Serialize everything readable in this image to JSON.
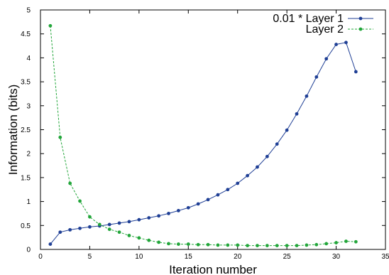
{
  "chart_data": {
    "type": "line",
    "title": "",
    "xlabel": "Iteration number",
    "ylabel": "Information (bits)",
    "xlim": [
      0,
      35
    ],
    "ylim": [
      0,
      5
    ],
    "xticks": [
      "0",
      "5",
      "10",
      "15",
      "20",
      "25",
      "30",
      "35"
    ],
    "yticks": [
      "0",
      "0.5",
      "1",
      "1.5",
      "2",
      "2.5",
      "3",
      "3.5",
      "4",
      "4.5",
      "5"
    ],
    "grid": false,
    "legend_position": "top-right",
    "series": [
      {
        "name": "0.01 * Layer 1",
        "color": "#1f3f95",
        "line_style": "solid",
        "marker": "circle",
        "x": [
          1,
          2,
          3,
          4,
          5,
          6,
          7,
          8,
          9,
          10,
          11,
          12,
          13,
          14,
          15,
          16,
          17,
          18,
          19,
          20,
          21,
          22,
          23,
          24,
          25,
          26,
          27,
          28,
          29,
          30,
          31,
          32
        ],
        "y": [
          0.11,
          0.36,
          0.41,
          0.44,
          0.47,
          0.49,
          0.52,
          0.55,
          0.58,
          0.62,
          0.66,
          0.7,
          0.75,
          0.81,
          0.87,
          0.95,
          1.04,
          1.14,
          1.25,
          1.38,
          1.54,
          1.72,
          1.94,
          2.2,
          2.49,
          2.83,
          3.2,
          3.6,
          3.98,
          4.28,
          4.32,
          3.71
        ]
      },
      {
        "name": "Layer 2",
        "color": "#22a63a",
        "line_style": "dashed",
        "marker": "circle",
        "x": [
          1,
          2,
          3,
          4,
          5,
          6,
          7,
          8,
          9,
          10,
          11,
          12,
          13,
          14,
          15,
          16,
          17,
          18,
          19,
          20,
          21,
          22,
          23,
          24,
          25,
          26,
          27,
          28,
          29,
          30,
          31,
          32
        ],
        "y": [
          4.67,
          2.34,
          1.38,
          1.01,
          0.68,
          0.52,
          0.42,
          0.36,
          0.29,
          0.24,
          0.19,
          0.15,
          0.12,
          0.11,
          0.11,
          0.1,
          0.1,
          0.09,
          0.09,
          0.09,
          0.08,
          0.08,
          0.08,
          0.08,
          0.08,
          0.08,
          0.09,
          0.1,
          0.12,
          0.14,
          0.17,
          0.16
        ]
      }
    ]
  }
}
